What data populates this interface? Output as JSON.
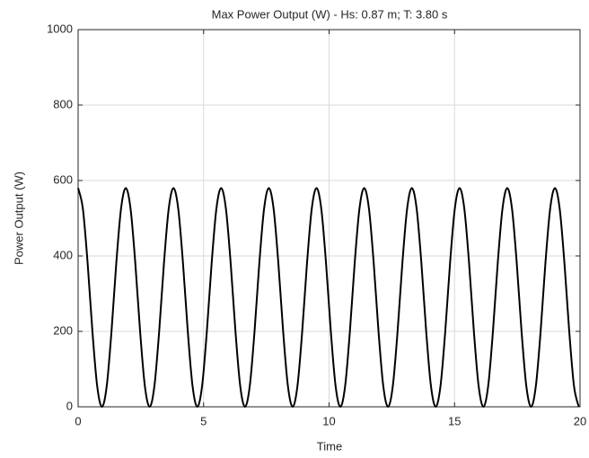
{
  "chart_data": {
    "type": "line",
    "title": "Max Power Output (W) - Hs: 0.87 m; T: 3.80 s",
    "x_label": "Time",
    "y_label": "Power Output (W)",
    "xlim": [
      0,
      20
    ],
    "xticks": [
      0,
      5,
      10,
      15,
      20
    ],
    "ylim": [
      0,
      1000
    ],
    "yticks": [
      0,
      200,
      400,
      600,
      800,
      1000
    ],
    "grid": true,
    "series": [
      {
        "color": "#000000",
        "x": [
          0,
          0.19,
          0.38,
          0.57,
          0.76,
          0.95,
          1.14,
          1.33,
          1.52,
          1.71,
          1.9,
          2.09,
          2.28,
          2.47,
          2.66,
          2.85,
          3.04,
          3.23,
          3.42,
          3.61,
          3.8,
          3.99,
          4.18,
          4.37,
          4.56,
          4.75,
          4.94,
          5.13,
          5.32,
          5.51,
          5.7,
          5.89,
          6.08,
          6.27,
          6.46,
          6.65,
          6.84,
          7.03,
          7.22,
          7.41,
          7.6,
          7.79,
          7.98,
          8.17,
          8.36,
          8.55,
          8.74,
          8.93,
          9.12,
          9.31,
          9.5,
          9.69,
          9.88,
          10.07,
          10.26,
          10.45,
          10.64,
          10.83,
          11.02,
          11.21,
          11.4,
          11.59,
          11.78,
          11.97,
          12.16,
          12.35,
          12.54,
          12.73,
          12.92,
          13.11,
          13.3,
          13.49,
          13.68,
          13.87,
          14.06,
          14.25,
          14.44,
          14.63,
          14.82,
          15.01,
          15.2,
          15.39,
          15.58,
          15.77,
          15.96,
          16.15,
          16.34,
          16.53,
          16.72,
          16.91,
          17.1,
          17.29,
          17.48,
          17.67,
          17.86,
          18.05,
          18.24,
          18.43,
          18.62,
          18.81,
          19,
          19.19,
          19.38,
          19.57,
          19.76,
          19.95
        ],
        "values": [
          580,
          525,
          380,
          200,
          55,
          0,
          55,
          200,
          380,
          525,
          580,
          525,
          380,
          200,
          55,
          0,
          55,
          200,
          380,
          525,
          580,
          525,
          380,
          200,
          55,
          0,
          55,
          200,
          380,
          525,
          580,
          525,
          380,
          200,
          55,
          0,
          55,
          200,
          380,
          525,
          580,
          525,
          380,
          200,
          55,
          0,
          55,
          200,
          380,
          525,
          580,
          525,
          380,
          200,
          55,
          0,
          55,
          200,
          380,
          525,
          580,
          525,
          380,
          200,
          55,
          0,
          55,
          200,
          380,
          525,
          580,
          525,
          380,
          200,
          55,
          0,
          55,
          200,
          380,
          525,
          580,
          525,
          380,
          200,
          55,
          0,
          55,
          200,
          380,
          525,
          580,
          525,
          380,
          200,
          55,
          0,
          55,
          200,
          380,
          525,
          580,
          525,
          380,
          200,
          55,
          0
        ]
      }
    ]
  }
}
